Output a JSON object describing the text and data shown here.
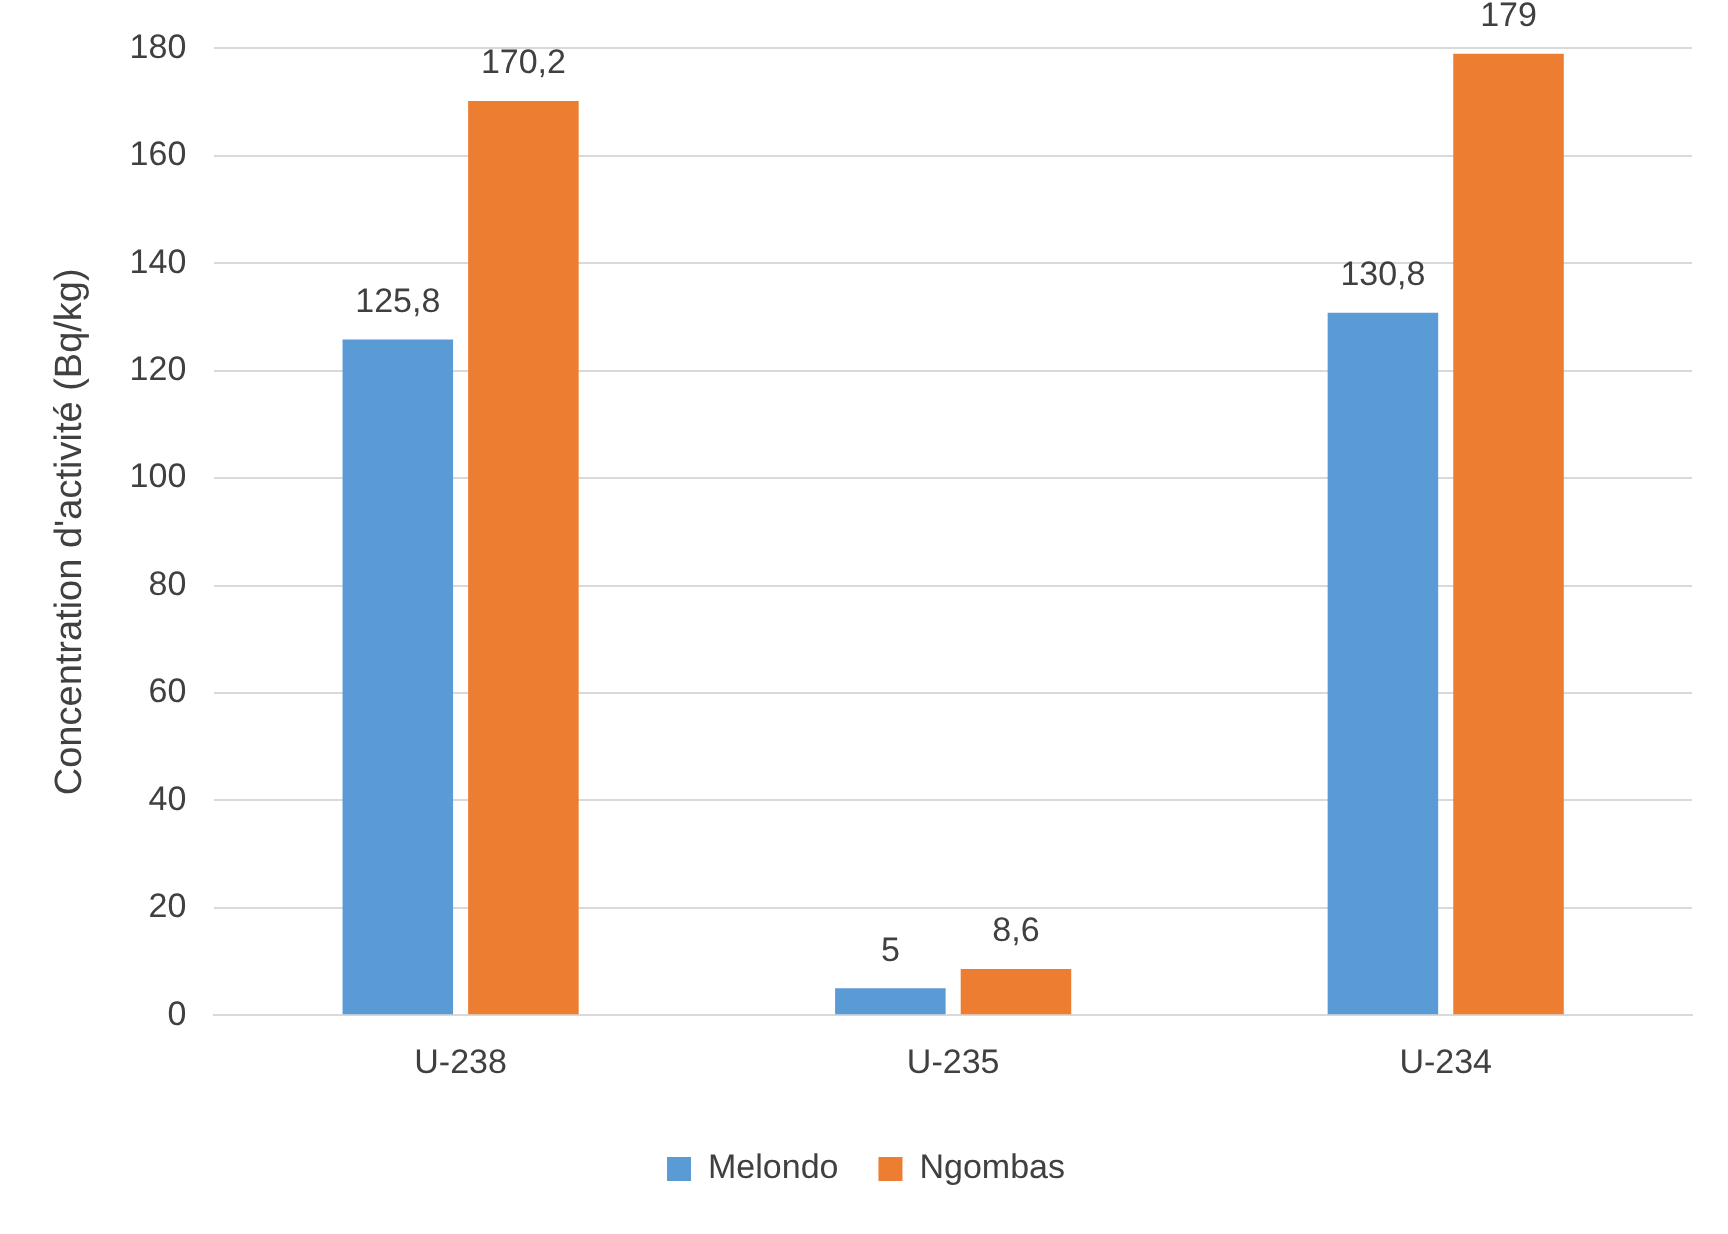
{
  "chart_data": {
    "type": "bar",
    "ylabel": "Concentration d'activité (Bq/kg)",
    "categories": [
      "U-238",
      "U-235",
      "U-234"
    ],
    "series": [
      {
        "name": "Melondo",
        "color": "#5b9bd5",
        "values": [
          125.8,
          5,
          130.8
        ],
        "value_labels": [
          "125,8",
          "5",
          "130,8"
        ]
      },
      {
        "name": "Ngombas",
        "color": "#ed7d31",
        "values": [
          170.2,
          8.6,
          179
        ],
        "value_labels": [
          "170,2",
          "8,6",
          "179"
        ]
      }
    ],
    "ylim": [
      0,
      180
    ],
    "yticks": [
      0,
      20,
      40,
      60,
      80,
      100,
      120,
      140,
      160,
      180
    ],
    "grid": "y",
    "legend": "bottom"
  }
}
